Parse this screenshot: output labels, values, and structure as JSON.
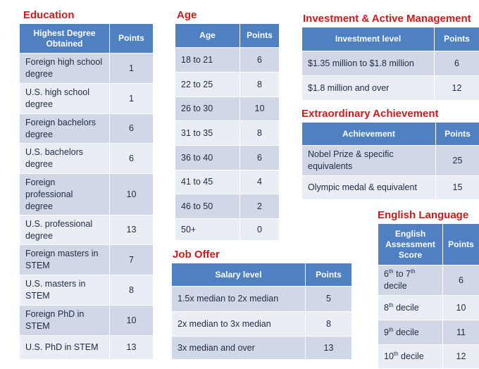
{
  "education": {
    "title": "Education",
    "col1": "Highest Degree Obtained",
    "col2": "Points",
    "rows": [
      {
        "label": "Foreign high school degree",
        "points": "1"
      },
      {
        "label": "U.S. high school degree",
        "points": "1"
      },
      {
        "label": "Foreign bachelors degree",
        "points": "6"
      },
      {
        "label": "U.S. bachelors degree",
        "points": "6"
      },
      {
        "label": "Foreign professional degree",
        "points": "10"
      },
      {
        "label": "U.S. professional degree",
        "points": "13"
      },
      {
        "label": "Foreign masters in STEM",
        "points": "7"
      },
      {
        "label": "U.S. masters in STEM",
        "points": "8"
      },
      {
        "label": "Foreign PhD in STEM",
        "points": "10"
      },
      {
        "label": "U.S. PhD in STEM",
        "points": "13"
      }
    ]
  },
  "age": {
    "title": "Age",
    "col1": "Age",
    "col2": "Points",
    "rows": [
      {
        "label": "18 to 21",
        "points": "6"
      },
      {
        "label": "22 to 25",
        "points": "8"
      },
      {
        "label": "26 to 30",
        "points": "10"
      },
      {
        "label": "31 to 35",
        "points": "8"
      },
      {
        "label": "36 to 40",
        "points": "6"
      },
      {
        "label": "41 to 45",
        "points": "4"
      },
      {
        "label": "46 to 50",
        "points": "2"
      },
      {
        "label": "50+",
        "points": "0"
      }
    ]
  },
  "job_offer": {
    "title": "Job Offer",
    "col1": "Salary level",
    "col2": "Points",
    "rows": [
      {
        "label": "1.5x median to 2x median",
        "points": "5"
      },
      {
        "label": "2x median to 3x median",
        "points": "8"
      },
      {
        "label": "3x median and over",
        "points": "13"
      }
    ]
  },
  "investment": {
    "title": "Investment & Active Management",
    "col1": "Investment level",
    "col2": "Points",
    "rows": [
      {
        "label": "$1.35 million to $1.8 million",
        "points": "6"
      },
      {
        "label": "$1.8 million and over",
        "points": "12"
      }
    ]
  },
  "achievement": {
    "title": "Extraordinary Achievement",
    "col1": "Achievement",
    "col2": "Points",
    "rows": [
      {
        "label": "Nobel Prize & specific equivalents",
        "points": "25"
      },
      {
        "label": "Olympic medal & equivalent",
        "points": "15"
      }
    ]
  },
  "english": {
    "title": "English Language",
    "col1": "English Assessment Score",
    "col2": "Points",
    "rows": [
      {
        "pre": "6",
        "sup1": "th",
        "mid": " to 7",
        "sup2": "th",
        "post": " decile",
        "points": "6"
      },
      {
        "pre": "8",
        "sup1": "th",
        "post": " decile",
        "points": "10"
      },
      {
        "pre": "9",
        "sup1": "th",
        "post": " decile",
        "points": "11"
      },
      {
        "pre": "10",
        "sup1": "th",
        "post": " decile",
        "points": "12"
      }
    ]
  }
}
